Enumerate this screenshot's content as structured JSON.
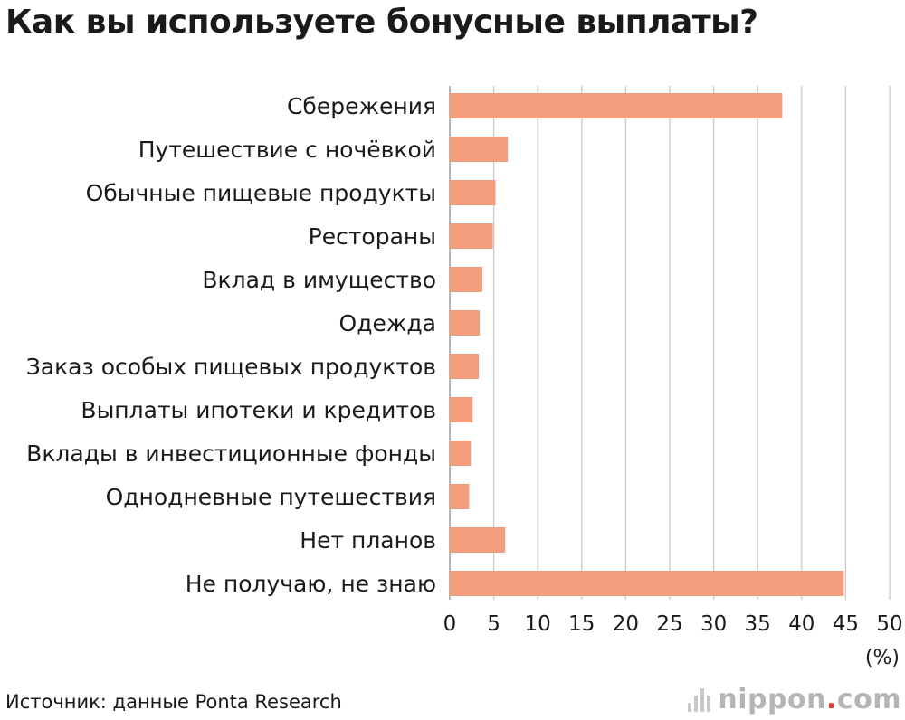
{
  "title": "Как вы используете бонусные выплаты?",
  "source": "Источник: данные Ponta Research",
  "brand": {
    "name": "nippon",
    "dot": ".",
    "suffix": "com",
    "icon": "nippon-wave-icon"
  },
  "chart_data": {
    "type": "bar",
    "orientation": "horizontal",
    "categories": [
      "Сбережения",
      "Путешествие с ночёвкой",
      "Обычные пищевые продукты",
      "Рестораны",
      "Вклад в имущество",
      "Одежда",
      "Заказ особых пищевых продуктов",
      "Выплаты ипотеки и кредитов",
      "Вклады в инвестиционные фонды",
      "Однодневные путешествия",
      "Нет планов",
      "Не получаю, не знаю"
    ],
    "values": [
      37.8,
      6.6,
      5.2,
      4.9,
      3.7,
      3.4,
      3.3,
      2.6,
      2.4,
      2.2,
      6.3,
      44.8
    ],
    "xlim": [
      0,
      50
    ],
    "xticks": [
      0,
      5,
      10,
      15,
      20,
      25,
      30,
      35,
      40,
      45,
      50
    ],
    "xunit": "(%)",
    "grid": true,
    "bar_color": "#f29e7d",
    "grid_color": "#c8c8c8"
  }
}
